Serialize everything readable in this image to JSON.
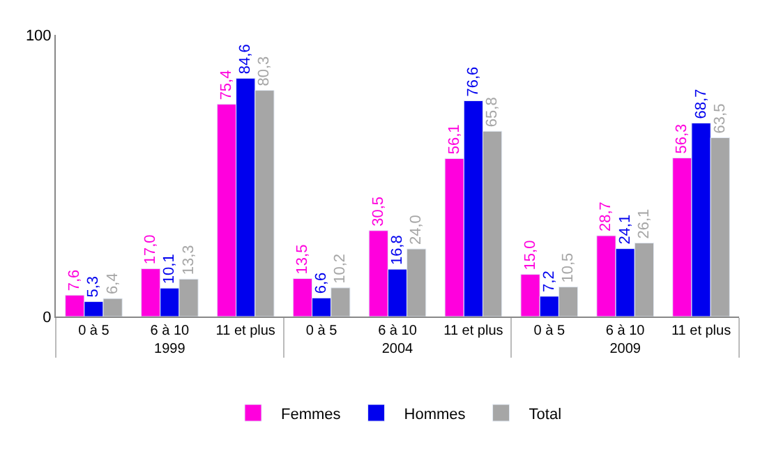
{
  "chart_data": {
    "type": "bar",
    "categories": [
      "0 à 5",
      "6 à 10",
      "11 et plus",
      "0 à 5",
      "6 à 10",
      "11 et plus",
      "0 à 5",
      "6 à 10",
      "11 et plus"
    ],
    "annotations": [
      "1999",
      "2004",
      "2009"
    ],
    "series": [
      {
        "name": "Femmes",
        "color": "#ff00dd",
        "values": [
          7.6,
          17.0,
          75.4,
          13.5,
          30.5,
          56.1,
          15.0,
          28.7,
          56.3
        ],
        "value_labels": [
          "7,6",
          "17,0",
          "75,4",
          "13,5",
          "30,5",
          "56,1",
          "15,0",
          "28,7",
          "56,3"
        ]
      },
      {
        "name": "Hommes",
        "color": "#0000ee",
        "values": [
          5.3,
          10.1,
          84.6,
          6.6,
          16.8,
          76.6,
          7.2,
          24.1,
          68.7
        ],
        "value_labels": [
          "5,3",
          "10,1",
          "84,6",
          "6,6",
          "16,8",
          "76,6",
          "7,2",
          "24,1",
          "68,7"
        ]
      },
      {
        "name": "Total",
        "color": "#a6a6a6",
        "values": [
          6.4,
          13.3,
          80.3,
          10.2,
          24.0,
          65.8,
          10.5,
          26.1,
          63.5
        ],
        "value_labels": [
          "6,4",
          "13,3",
          "80,3",
          "10,2",
          "24,0",
          "65,8",
          "10,5",
          "26,1",
          "63,5"
        ]
      }
    ],
    "ylim": [
      0,
      100
    ],
    "yticks": [
      0,
      100
    ],
    "legend": "bottom"
  }
}
